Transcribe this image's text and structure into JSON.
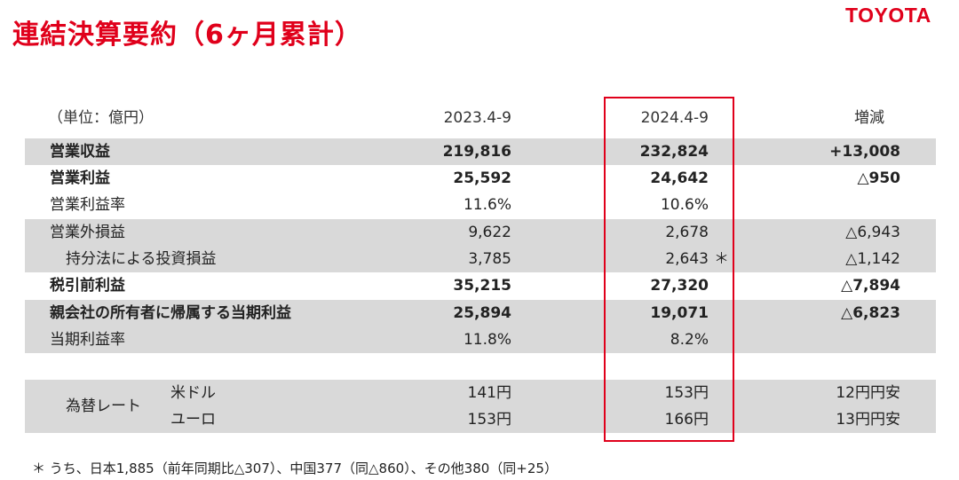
{
  "header": {
    "title": "連結決算要約（6ヶ月累計）",
    "logo": "TOYOTA"
  },
  "table": {
    "unit": "（単位：億円）",
    "columns": [
      "2023.4-9",
      "2024.4-9",
      "増減"
    ],
    "rows": [
      {
        "label": "営業収益",
        "v1": "219,816",
        "v2": "232,824",
        "diff": "+13,008",
        "note": ""
      },
      {
        "label": "営業利益",
        "v1": "25,592",
        "v2": "24,642",
        "diff": "△950",
        "note": ""
      },
      {
        "label": "営業利益率",
        "v1": "11.6%",
        "v2": "10.6%",
        "diff": "",
        "note": ""
      },
      {
        "label": "営業外損益",
        "v1": "9,622",
        "v2": "2,678",
        "diff": "△6,943",
        "note": ""
      },
      {
        "label": "持分法による投資損益",
        "v1": "3,785",
        "v2": "2,643",
        "diff": "△1,142",
        "note": "＊"
      },
      {
        "label": "税引前利益",
        "v1": "35,215",
        "v2": "27,320",
        "diff": "△7,894",
        "note": ""
      },
      {
        "label": "親会社の所有者に帰属する当期利益",
        "v1": "25,894",
        "v2": "19,071",
        "diff": "△6,823",
        "note": ""
      },
      {
        "label": "当期利益率",
        "v1": "11.8%",
        "v2": "8.2%",
        "diff": "",
        "note": ""
      }
    ],
    "fx": {
      "label": "為替レート",
      "rows": [
        {
          "currency": "米ドル",
          "v1": "141円",
          "v2": "153円",
          "diff": "12円円安"
        },
        {
          "currency": "ユーロ",
          "v1": "153円",
          "v2": "166円",
          "diff": "13円円安"
        }
      ]
    }
  },
  "footnote": "＊ うち、日本1,885（前年同期比△307）、中国377（同△860）、その他380（同+25）",
  "colors": {
    "accent": "#e0001b",
    "row_shade": "#d9d9d9"
  }
}
